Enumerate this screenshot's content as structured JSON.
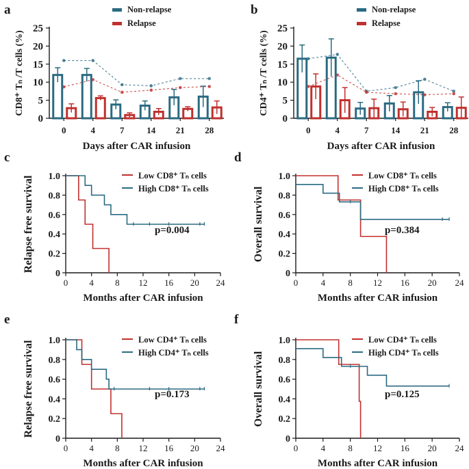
{
  "colors": {
    "blue": "#2b6a82",
    "red": "#c0302e",
    "axis": "#1a1a1a"
  },
  "chart_data": [
    {
      "panel": "a",
      "type": "bar",
      "categories": [
        "0",
        "4",
        "7",
        "14",
        "21",
        "28"
      ],
      "ylabel": "CD8⁺ Tₙ /T cells (%)",
      "xlabel": "Days after CAR infusion",
      "ylim": [
        0,
        25
      ],
      "yticks": [
        "0",
        "5",
        "10",
        "15",
        "20",
        "25"
      ],
      "series": [
        {
          "name": "Non-relapse",
          "color": "blue",
          "values": [
            12,
            12,
            3.8,
            3.5,
            5.8,
            6
          ],
          "err": [
            2,
            1.8,
            1.3,
            1.3,
            2.2,
            2.9
          ],
          "trend": [
            16,
            16,
            9.3,
            9,
            11,
            11
          ]
        },
        {
          "name": "Relapse",
          "color": "red",
          "values": [
            2.8,
            5.6,
            0.9,
            1.8,
            2.6,
            3
          ],
          "err": [
            1.2,
            0.6,
            0.6,
            0.9,
            0.6,
            1.8
          ],
          "trend": [
            8.7,
            10.7,
            7.2,
            7.8,
            8.5,
            8.8
          ]
        }
      ]
    },
    {
      "panel": "b",
      "type": "bar",
      "categories": [
        "0",
        "4",
        "7",
        "14",
        "21",
        "28"
      ],
      "ylabel": "CD4⁺ Tₙ /T cells (%)",
      "xlabel": "Days after CAR infusion",
      "ylim": [
        0,
        25
      ],
      "yticks": [
        "0",
        "5",
        "10",
        "15",
        "20",
        "25"
      ],
      "series": [
        {
          "name": "Non-relapse",
          "color": "blue",
          "values": [
            16.5,
            16.8,
            2.7,
            4.1,
            7.2,
            3.1
          ],
          "err": [
            3.8,
            5.2,
            1.7,
            2.2,
            3.2,
            1.2
          ],
          "trend": [
            16.5,
            17.7,
            7.5,
            8.5,
            10.8,
            7.5
          ]
        },
        {
          "name": "Relapse",
          "color": "red",
          "values": [
            8.8,
            5,
            2.8,
            2.5,
            1.8,
            2.9
          ],
          "err": [
            3.5,
            3.5,
            2.5,
            2,
            1.2,
            3
          ],
          "trend": [
            8.8,
            12,
            7.2,
            6.8,
            6.5,
            6.8
          ]
        }
      ]
    },
    {
      "panel": "c",
      "type": "line",
      "subtype": "kaplan-meier",
      "ylabel": "Relapse free survival",
      "xlabel": "Months after CAR infusion",
      "xlim": [
        0,
        24
      ],
      "ylim": [
        0,
        1
      ],
      "xticks": [
        "0",
        "4",
        "8",
        "12",
        "16",
        "20",
        "24"
      ],
      "yticks": [
        "0",
        "0.2",
        "0.4",
        "0.6",
        "0.8",
        "1.0"
      ],
      "pvalue": "p=0.004",
      "series": [
        {
          "name": "Low  CD8⁺ Tₙ cells",
          "color": "red",
          "steps": [
            [
              0,
              1
            ],
            [
              2,
              0.75
            ],
            [
              3,
              0.5
            ],
            [
              4.2,
              0.25
            ],
            [
              6.7,
              0
            ]
          ],
          "end": 6.7,
          "censor": []
        },
        {
          "name": "High CD8⁺ Tₙ cells",
          "color": "blue",
          "steps": [
            [
              0,
              1
            ],
            [
              3,
              0.9
            ],
            [
              4,
              0.8
            ],
            [
              6,
              0.7
            ],
            [
              7,
              0.6
            ],
            [
              9.5,
              0.5
            ]
          ],
          "end": 21.5,
          "censor": [
            [
              10.5,
              0.5
            ],
            [
              13,
              0.5
            ],
            [
              16,
              0.5
            ],
            [
              20.8,
              0.5
            ],
            [
              21.5,
              0.5
            ]
          ]
        }
      ]
    },
    {
      "panel": "d",
      "type": "line",
      "subtype": "kaplan-meier",
      "ylabel": "Overall survival",
      "xlabel": "Months after CAR infusion",
      "xlim": [
        0,
        24
      ],
      "ylim": [
        0,
        1
      ],
      "xticks": [
        "0",
        "4",
        "8",
        "12",
        "16",
        "20",
        "24"
      ],
      "yticks": [
        "0",
        "0.2",
        "0.4",
        "0.6",
        "0.8",
        "1.0"
      ],
      "pvalue": "p=0.384",
      "series": [
        {
          "name": "Low CD8⁺ Tₙ cells",
          "color": "red",
          "steps": [
            [
              0,
              1
            ],
            [
              6.2,
              0.75
            ],
            [
              9.5,
              0.375
            ],
            [
              13.3,
              0
            ]
          ],
          "end": 13.3,
          "censor": []
        },
        {
          "name": "High CD8⁺ Tₙ cells",
          "color": "blue",
          "steps": [
            [
              0,
              0.91
            ],
            [
              4,
              0.82
            ],
            [
              6.4,
              0.73
            ],
            [
              9.5,
              0.55
            ]
          ],
          "end": 22.5,
          "censor": [
            [
              8,
              0.73
            ],
            [
              21.5,
              0.55
            ],
            [
              22.5,
              0.55
            ]
          ]
        }
      ]
    },
    {
      "panel": "e",
      "type": "line",
      "subtype": "kaplan-meier",
      "ylabel": "Relapse free survival",
      "xlabel": "Months after CAR infusion",
      "xlim": [
        0,
        24
      ],
      "ylim": [
        0,
        1
      ],
      "xticks": [
        "0",
        "4",
        "8",
        "12",
        "16",
        "20",
        "24"
      ],
      "yticks": [
        "0",
        "0.2",
        "0.4",
        "0.6",
        "0.8",
        "1.0"
      ],
      "pvalue": "p=0.173",
      "series": [
        {
          "name": "Low  CD4⁺ Tₙ cells",
          "color": "red",
          "steps": [
            [
              0,
              1
            ],
            [
              2.5,
              0.75
            ],
            [
              4,
              0.5
            ],
            [
              7,
              0.25
            ],
            [
              8.7,
              0
            ]
          ],
          "end": 8.7,
          "censor": []
        },
        {
          "name": "High CD4⁺ Tₙ cells",
          "color": "blue",
          "steps": [
            [
              0,
              1
            ],
            [
              1.7,
              0.9
            ],
            [
              2.5,
              0.8
            ],
            [
              4,
              0.7
            ],
            [
              6.3,
              0.6
            ],
            [
              6.7,
              0.5
            ]
          ],
          "end": 21.5,
          "censor": [
            [
              7.5,
              0.5
            ],
            [
              13,
              0.5
            ],
            [
              16,
              0.5
            ],
            [
              20.8,
              0.5
            ],
            [
              21.5,
              0.5
            ]
          ]
        }
      ]
    },
    {
      "panel": "f",
      "type": "line",
      "subtype": "kaplan-meier",
      "ylabel": "Overall survival",
      "xlabel": "Months after CAR infusion",
      "xlim": [
        0,
        24
      ],
      "ylim": [
        0,
        1
      ],
      "xticks": [
        "0",
        "4",
        "8",
        "12",
        "16",
        "20",
        "24"
      ],
      "yticks": [
        "0",
        "0.2",
        "0.4",
        "0.6",
        "0.8",
        "1.0"
      ],
      "pvalue": "p=0.125",
      "series": [
        {
          "name": "Low CD4⁺  Tₙ cells",
          "color": "red",
          "steps": [
            [
              0,
              1
            ],
            [
              6.3,
              0.75
            ],
            [
              9.3,
              0.375
            ],
            [
              9.5,
              0
            ]
          ],
          "end": 9.5,
          "censor": []
        },
        {
          "name": "High CD4⁺ Tₙ cells",
          "color": "blue",
          "steps": [
            [
              0,
              0.91
            ],
            [
              4,
              0.82
            ],
            [
              6.7,
              0.73
            ],
            [
              10.5,
              0.64
            ],
            [
              13.3,
              0.53
            ]
          ],
          "end": 22.5,
          "censor": [
            [
              8,
              0.73
            ],
            [
              22.5,
              0.53
            ]
          ]
        }
      ]
    }
  ]
}
